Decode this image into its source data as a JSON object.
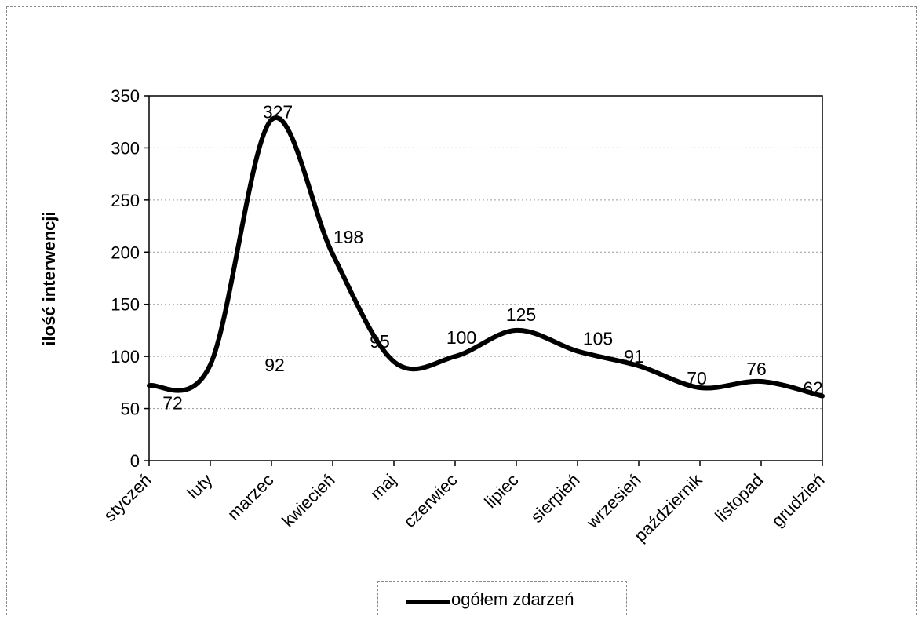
{
  "chart_data": {
    "type": "line",
    "smooth": true,
    "categories": [
      "styczeń",
      "luty",
      "marzec",
      "kwiecień",
      "maj",
      "czerwiec",
      "lipiec",
      "sierpień",
      "wrzesień",
      "październik",
      "listopad",
      "grudzień"
    ],
    "series": [
      {
        "name": "ogółem zdarzeń",
        "values": [
          72,
          92,
          327,
          198,
          95,
          100,
          125,
          105,
          91,
          70,
          76,
          62
        ],
        "color": "#000000"
      }
    ],
    "title": "",
    "xlabel": "",
    "ylabel": "ilość interwencji",
    "ylim": [
      0,
      350
    ],
    "yticks": [
      0,
      50,
      100,
      150,
      200,
      250,
      300,
      350
    ],
    "grid": {
      "horizontal": true,
      "vertical": false
    },
    "legend": "bottom-center",
    "data_labels": true
  }
}
